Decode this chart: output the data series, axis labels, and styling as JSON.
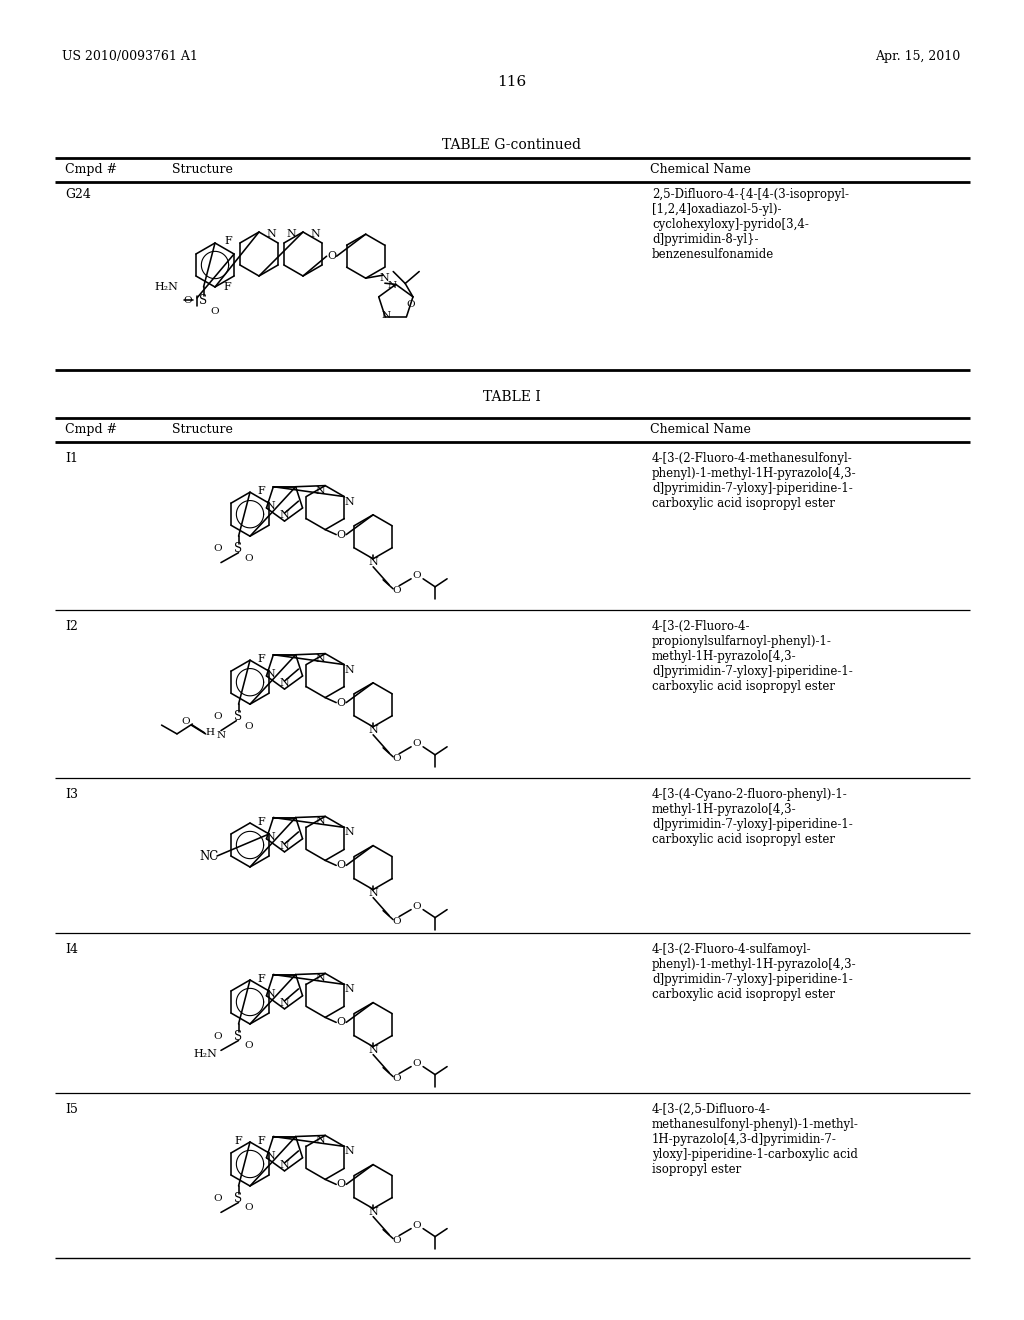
{
  "page_number": "116",
  "patent_number": "US 2010/0093761 A1",
  "patent_date": "Apr. 15, 2010",
  "table_g_title": "TABLE G-continued",
  "table_i_title": "TABLE I",
  "col_headers": [
    "Cmpd #",
    "Structure",
    "Chemical Name"
  ],
  "g24_chem_name": "2,5-Difluoro-4-{4-[4-(3-isopropyl-\n[1,2,4]oxadiazol-5-yl)-\ncyclohexyloxy]-pyrido[3,4-\nd]pyrimidin-8-yl}-\nbenzenesulfonamide",
  "table_i_rows": [
    {
      "cmpd": "I1",
      "chemical_name": "4-[3-(2-Fluoro-4-methanesulfonyl-\nphenyl)-1-methyl-1H-pyrazolo[4,3-\nd]pyrimidin-7-yloxy]-piperidine-1-\ncarboxylic acid isopropyl ester"
    },
    {
      "cmpd": "I2",
      "chemical_name": "4-[3-(2-Fluoro-4-\npropionylsulfarnoyl-phenyl)-1-\nmethyl-1H-pyrazolo[4,3-\nd]pyrimidin-7-yloxy]-piperidine-1-\ncarboxylic acid isopropyl ester"
    },
    {
      "cmpd": "I3",
      "chemical_name": "4-[3-(4-Cyano-2-fluoro-phenyl)-1-\nmethyl-1H-pyrazolo[4,3-\nd]pyrimidin-7-yloxy]-piperidine-1-\ncarboxylic acid isopropyl ester"
    },
    {
      "cmpd": "I4",
      "chemical_name": "4-[3-(2-Fluoro-4-sulfamoyl-\nphenyl)-1-methyl-1H-pyrazolo[4,3-\nd]pyrimidin-7-yloxy]-piperidine-1-\ncarboxylic acid isopropyl ester"
    },
    {
      "cmpd": "I5",
      "chemical_name": "4-[3-(2,5-Difluoro-4-\nmethanesulfonyl-phenyl)-1-methyl-\n1H-pyrazolo[4,3-d]pyrimidin-7-\nyloxy]-piperidine-1-carboxylic acid\nisopropyl ester"
    }
  ],
  "bg_color": "#ffffff",
  "text_color": "#000000"
}
